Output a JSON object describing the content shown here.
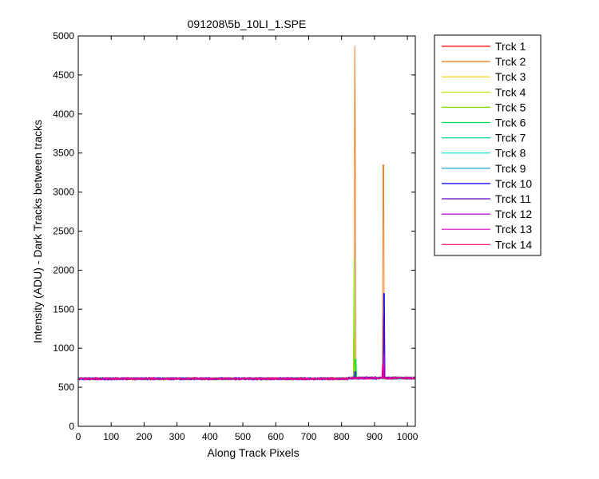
{
  "chart_data": {
    "type": "line",
    "title": "091208\\5b_10LI_1.SPE",
    "xlabel": "Along Track Pixels",
    "ylabel": "Intensity (ADU) - Dark Tracks between tracks",
    "xlim": [
      0,
      1024
    ],
    "ylim": [
      0,
      5000
    ],
    "xticks": [
      0,
      100,
      200,
      300,
      400,
      500,
      600,
      700,
      800,
      900,
      1000
    ],
    "yticks": [
      0,
      500,
      1000,
      1500,
      2000,
      2500,
      3000,
      3500,
      4000,
      4500,
      5000
    ],
    "grid": false,
    "legend_position": "outside-right",
    "baseline": 610,
    "series": [
      {
        "name": "Trck 1",
        "color": "#ff0000",
        "peaks": []
      },
      {
        "name": "Trck 2",
        "color": "#f07010",
        "peaks": [
          {
            "x": 840,
            "y": 4870
          },
          {
            "x": 841,
            "y": 3290
          },
          {
            "x": 927,
            "y": 3350
          },
          {
            "x": 928,
            "y": 3280
          }
        ]
      },
      {
        "name": "Trck 3",
        "color": "#f0d000",
        "peaks": [
          {
            "x": 839,
            "y": 780
          }
        ]
      },
      {
        "name": "Trck 4",
        "color": "#c8e000",
        "peaks": []
      },
      {
        "name": "Trck 5",
        "color": "#70e000",
        "peaks": [
          {
            "x": 838,
            "y": 2150
          },
          {
            "x": 842,
            "y": 850
          }
        ]
      },
      {
        "name": "Trck 6",
        "color": "#00e050",
        "peaks": [
          {
            "x": 843,
            "y": 860
          }
        ]
      },
      {
        "name": "Trck 7",
        "color": "#00d8a0",
        "peaks": []
      },
      {
        "name": "Trck 8",
        "color": "#00e0d8",
        "peaks": []
      },
      {
        "name": "Trck 9",
        "color": "#00a0d0",
        "peaks": []
      },
      {
        "name": "Trck 10",
        "color": "#0000ff",
        "peaks": [
          {
            "x": 841,
            "y": 700
          },
          {
            "x": 929,
            "y": 1700
          }
        ]
      },
      {
        "name": "Trck 11",
        "color": "#5a00c8",
        "peaks": [
          {
            "x": 928,
            "y": 1420
          }
        ]
      },
      {
        "name": "Trck 12",
        "color": "#b000e0",
        "peaks": [
          {
            "x": 930,
            "y": 950
          }
        ]
      },
      {
        "name": "Trck 13",
        "color": "#e000c0",
        "peaks": [
          {
            "x": 924,
            "y": 790
          }
        ]
      },
      {
        "name": "Trck 14",
        "color": "#ff0070",
        "peaks": [
          {
            "x": 926,
            "y": 800
          }
        ]
      }
    ]
  }
}
